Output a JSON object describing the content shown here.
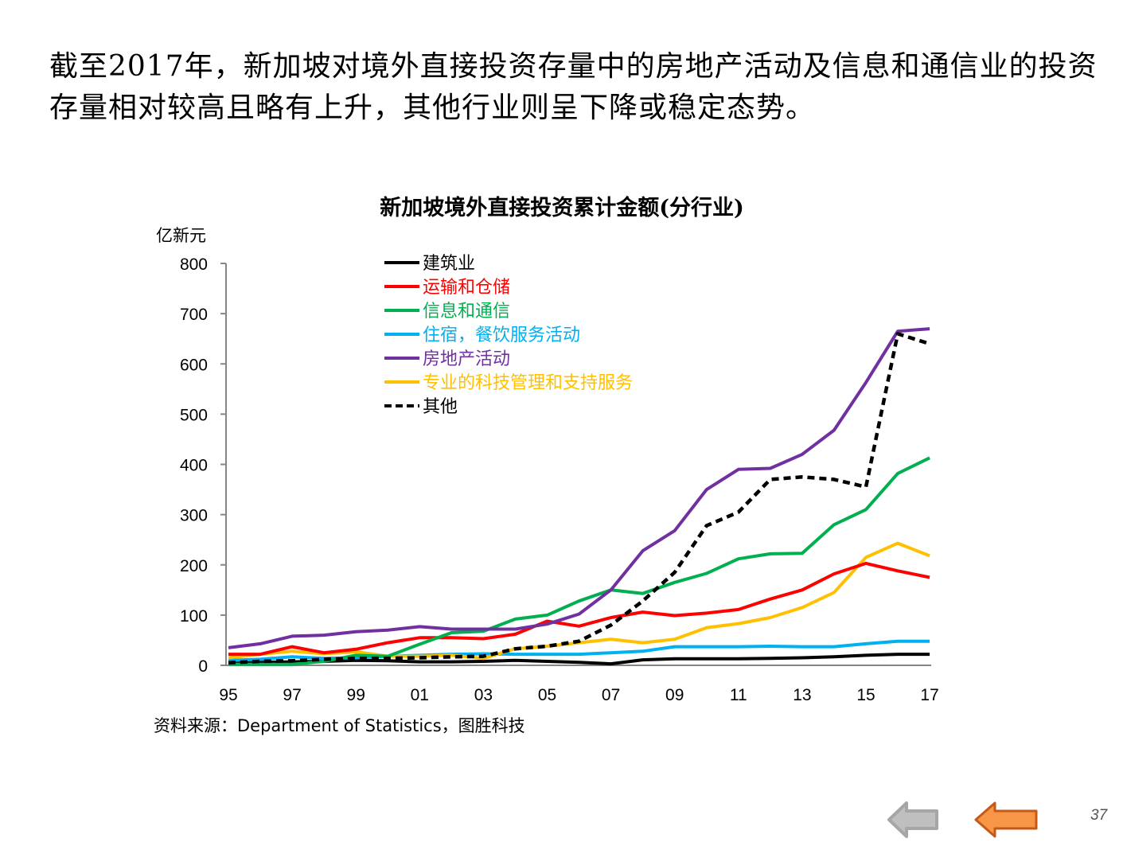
{
  "slide": {
    "headline": "截至2017年，新加坡对境外直接投资存量中的房地产活动及信息和通信业的投资存量相对较高且略有上升，其他行业则呈下降或稳定态势。",
    "source": "资料来源：Department  of Statistics，图胜科技",
    "page_number": "37",
    "nav": {
      "prev_icon": "arrow-left-gray",
      "back_icon": "arrow-left-orange"
    }
  },
  "chart_data": {
    "type": "line",
    "title": "新加坡境外直接投资累计金额(分行业)",
    "ylabel": "亿新元",
    "xlabel": "",
    "ylim": [
      0,
      800
    ],
    "yticks": [
      0,
      100,
      200,
      300,
      400,
      500,
      600,
      700,
      800
    ],
    "x": [
      "95",
      "96",
      "97",
      "98",
      "99",
      "00",
      "01",
      "02",
      "03",
      "04",
      "05",
      "06",
      "07",
      "08",
      "09",
      "10",
      "11",
      "12",
      "13",
      "14",
      "15",
      "16",
      "17"
    ],
    "xtick_labels": [
      "95",
      "97",
      "99",
      "01",
      "03",
      "05",
      "07",
      "09",
      "11",
      "13",
      "15",
      "17"
    ],
    "legend_position": "top-left",
    "grid": false,
    "series": [
      {
        "name": "建筑业",
        "color": "#000000",
        "dash": false,
        "values": [
          5,
          6,
          7,
          8,
          10,
          9,
          7,
          7,
          8,
          10,
          8,
          6,
          3,
          11,
          13,
          13,
          13,
          14,
          15,
          17,
          20,
          22,
          22
        ]
      },
      {
        "name": "运输和仓储",
        "color": "#ff0000",
        "dash": false,
        "values": [
          22,
          22,
          37,
          25,
          32,
          45,
          55,
          55,
          53,
          62,
          88,
          78,
          95,
          106,
          99,
          104,
          111,
          132,
          150,
          182,
          203,
          188,
          175
        ]
      },
      {
        "name": "信息和通信",
        "color": "#00b050",
        "dash": false,
        "values": [
          2,
          2,
          2,
          8,
          20,
          18,
          42,
          65,
          68,
          92,
          100,
          128,
          150,
          143,
          165,
          183,
          212,
          222,
          223,
          280,
          310,
          382,
          413
        ]
      },
      {
        "name": "住宿，餐饮服务活动",
        "color": "#00b0f0",
        "dash": false,
        "values": [
          10,
          12,
          17,
          14,
          15,
          18,
          20,
          22,
          23,
          22,
          22,
          22,
          25,
          28,
          37,
          37,
          37,
          38,
          37,
          37,
          43,
          48,
          48
        ]
      },
      {
        "name": "房地产活动",
        "color": "#7030a0",
        "dash": false,
        "values": [
          35,
          43,
          58,
          60,
          67,
          70,
          77,
          72,
          72,
          72,
          82,
          102,
          150,
          228,
          268,
          350,
          390,
          392,
          420,
          468,
          563,
          665,
          670
        ]
      },
      {
        "name": "专业的科技管理和支持服务",
        "color": "#ffc000",
        "dash": false,
        "values": [
          15,
          22,
          28,
          23,
          27,
          18,
          18,
          20,
          14,
          33,
          38,
          45,
          52,
          45,
          52,
          75,
          83,
          95,
          115,
          145,
          215,
          243,
          218
        ]
      },
      {
        "name": "其他",
        "color": "#000000",
        "dash": true,
        "values": [
          5,
          8,
          9,
          12,
          14,
          14,
          15,
          17,
          18,
          33,
          38,
          48,
          80,
          128,
          185,
          278,
          305,
          370,
          375,
          370,
          355,
          660,
          640
        ]
      }
    ]
  }
}
